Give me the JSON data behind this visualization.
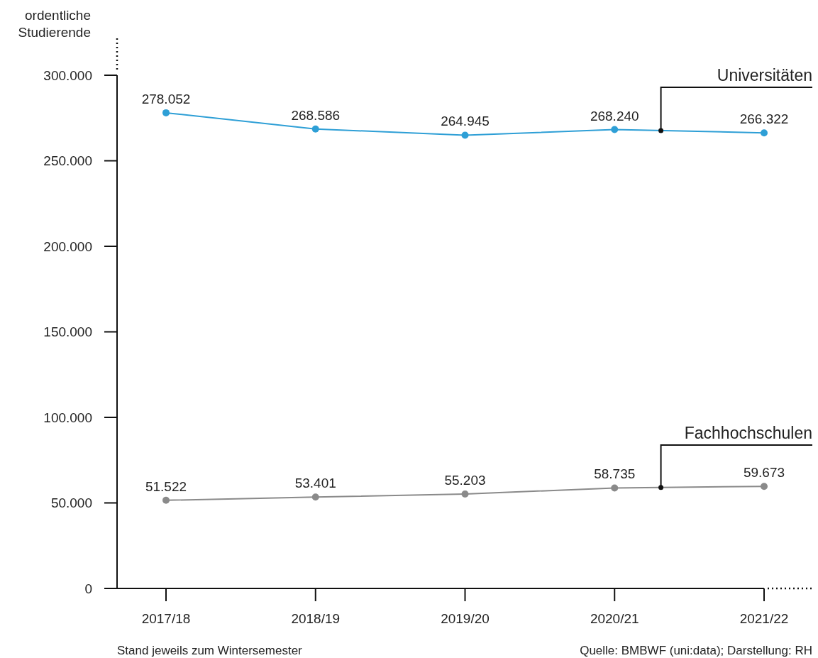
{
  "chart_data": {
    "type": "line",
    "ylabel": "ordentliche Studierende",
    "categories": [
      "2017/18",
      "2018/19",
      "2019/20",
      "2020/21",
      "2021/22"
    ],
    "series": [
      {
        "name": "Universitäten",
        "color": "#2e9fd6",
        "values": [
          278052,
          268586,
          264945,
          268240,
          266322
        ],
        "value_labels": [
          "278.052",
          "268.586",
          "264.945",
          "268.240",
          "266.322"
        ]
      },
      {
        "name": "Fachhochschulen",
        "color": "#8a8a8a",
        "values": [
          51522,
          53401,
          55203,
          58735,
          59673
        ],
        "value_labels": [
          "51.522",
          "53.401",
          "55.203",
          "58.735",
          "59.673"
        ]
      }
    ],
    "ylim": [
      0,
      300000
    ],
    "yticks": [
      {
        "value": 0,
        "label": "0"
      },
      {
        "value": 50000,
        "label": "50.000"
      },
      {
        "value": 100000,
        "label": "100.000"
      },
      {
        "value": 150000,
        "label": "150.000"
      },
      {
        "value": 200000,
        "label": "200.000"
      },
      {
        "value": 250000,
        "label": "250.000"
      },
      {
        "value": 300000,
        "label": "300.000"
      }
    ],
    "grid": false,
    "legend": false,
    "marker": "circle",
    "line_style": "solid",
    "annotations": [
      "Stand jeweils zum Wintersemester",
      "Quelle: BMBWF (uni:data); Darstellung: RH"
    ]
  }
}
